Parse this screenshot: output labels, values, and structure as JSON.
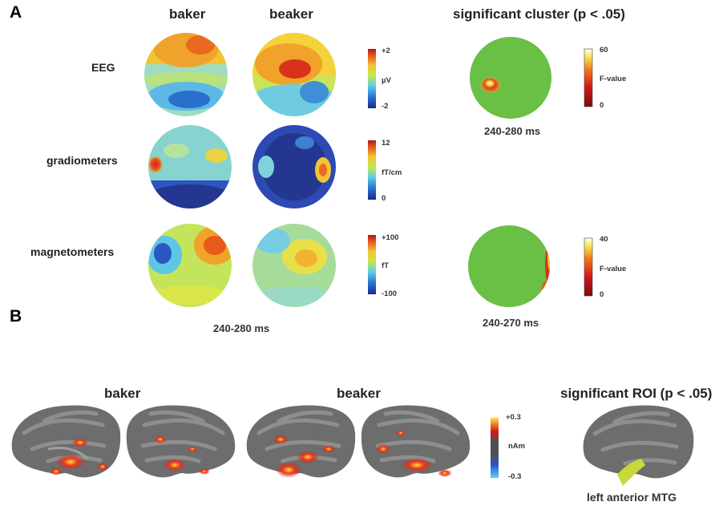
{
  "panel_a": {
    "letter": "A",
    "columns": [
      "baker",
      "beaker"
    ],
    "cluster_title": "significant cluster (p < .05)",
    "rows": [
      {
        "label": "EEG",
        "scale_max": "+2",
        "scale_unit": "µV",
        "scale_min": "-2"
      },
      {
        "label": "gradiometers",
        "scale_max": "12",
        "scale_unit": "fT/cm",
        "scale_min": "0"
      },
      {
        "label": "magnetometers",
        "scale_max": "+100",
        "scale_unit": "fT",
        "scale_min": "-100"
      }
    ],
    "time_window": "240-280 ms",
    "clusters": [
      {
        "scale_max": "60",
        "scale_unit": "F-value",
        "scale_min": "0",
        "time_window": "240-280 ms"
      },
      {
        "scale_max": "40",
        "scale_unit": "F-value",
        "scale_min": "0",
        "time_window": "240-270 ms"
      }
    ]
  },
  "panel_b": {
    "letter": "B",
    "columns": [
      "baker",
      "beaker"
    ],
    "scale_max": "+0.3",
    "scale_unit": "nAm",
    "scale_min": "-0.3",
    "roi_title": "significant ROI (p < .05)",
    "roi_label": "left anterior MTG"
  },
  "colors": {
    "cluster_background": "#6abf45",
    "brain_cortex": "#6d6d6d",
    "roi_highlight": "#c9d93a",
    "activation": "#e8231a"
  }
}
